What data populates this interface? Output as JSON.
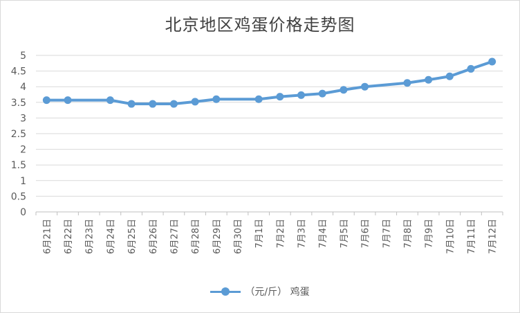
{
  "chart_data": {
    "type": "line",
    "title": "北京地区鸡蛋价格走势图",
    "xlabel": "",
    "ylabel": "",
    "categories": [
      "6月21日",
      "6月22日",
      "6月23日",
      "6月24日",
      "6月25日",
      "6月26日",
      "6月27日",
      "6月28日",
      "6月29日",
      "6月30日",
      "7月1日",
      "7月2日",
      "7月3日",
      "7月4日",
      "7月5日",
      "7月6日",
      "7月7日",
      "7月8日",
      "7月9日",
      "7月10日",
      "7月11日",
      "7月12日"
    ],
    "y_ticks": [
      "0",
      "0.5",
      "1",
      "1.5",
      "2",
      "2.5",
      "3",
      "3.5",
      "4",
      "4.5",
      "5"
    ],
    "ylim": [
      0,
      5
    ],
    "grid": true,
    "legend_position": "bottom",
    "series": [
      {
        "name": "（元/斤） 鸡蛋",
        "color": "#5b9bd5",
        "values": [
          3.57,
          3.57,
          null,
          3.57,
          3.45,
          3.45,
          3.45,
          3.52,
          3.6,
          null,
          3.6,
          3.68,
          3.73,
          3.78,
          3.9,
          4.0,
          null,
          4.12,
          4.22,
          4.33,
          4.57,
          4.8
        ]
      }
    ]
  }
}
